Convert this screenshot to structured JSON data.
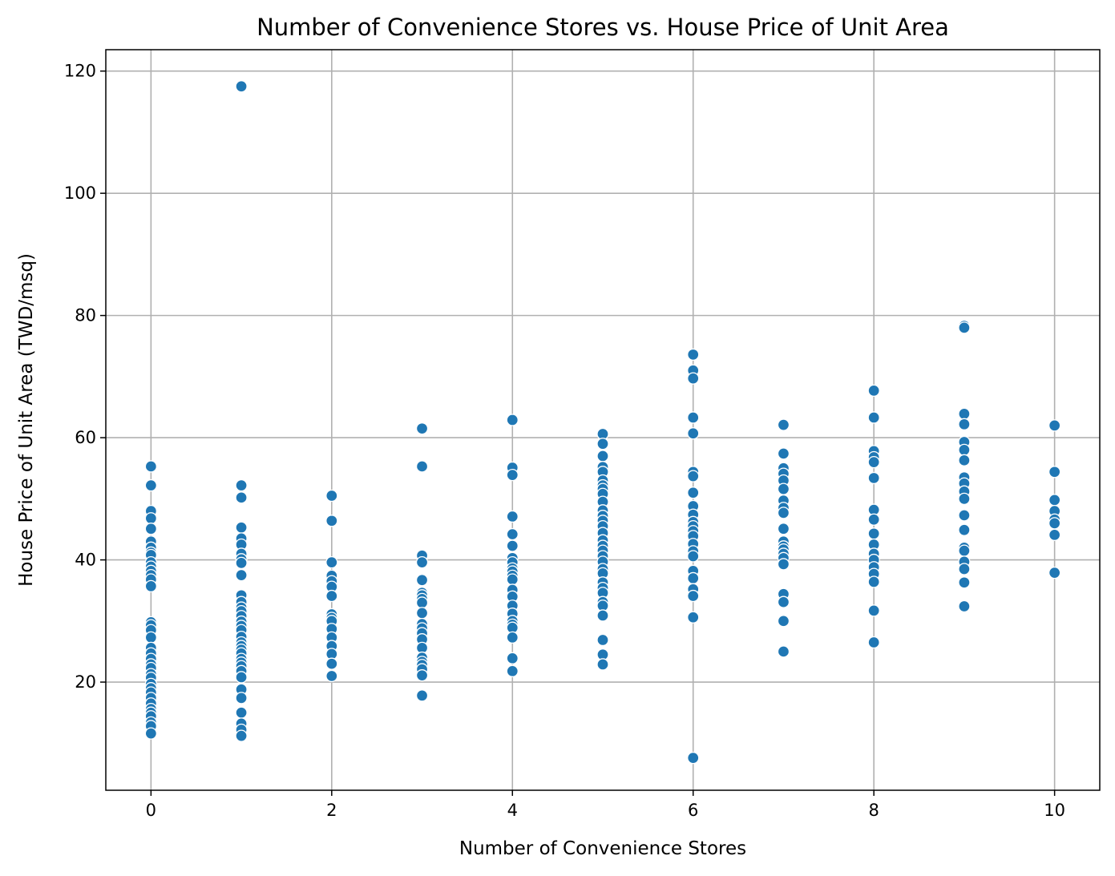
{
  "chart_data": {
    "type": "scatter",
    "title": "Number of Convenience Stores vs. House Price of Unit Area",
    "xlabel": "Number of Convenience Stores",
    "ylabel": "House Price of Unit Area (TWD/msq)",
    "xlim": [
      -0.5,
      10.5
    ],
    "ylim": [
      2.3,
      123.5
    ],
    "xticks": [
      "0",
      "2",
      "4",
      "6",
      "8",
      "10"
    ],
    "xtick_values": [
      0,
      2,
      4,
      6,
      8,
      10
    ],
    "yticks": [
      "20",
      "40",
      "60",
      "80",
      "100",
      "120"
    ],
    "ytick_values": [
      20,
      40,
      60,
      80,
      100,
      120
    ],
    "grid": true,
    "marker_color": "#1f77b4",
    "points": [
      {
        "x": 0,
        "y": [
          55.3,
          52.2,
          48.0,
          46.8,
          45.1,
          43.0,
          42.0,
          41.2,
          40.8,
          39.6,
          38.9,
          38.2,
          37.5,
          36.8,
          35.7,
          29.8,
          29.3,
          28.5,
          27.3,
          25.6,
          24.7,
          23.8,
          22.9,
          22.3,
          21.3,
          20.7,
          19.7,
          19.0,
          18.3,
          17.4,
          16.5,
          15.6,
          15.0,
          14.4,
          13.4,
          12.8,
          11.6
        ]
      },
      {
        "x": 1,
        "y": [
          117.5,
          52.2,
          50.2,
          45.3,
          43.5,
          42.5,
          41.0,
          40.1,
          39.5,
          37.5,
          34.2,
          33.1,
          32.2,
          31.6,
          30.8,
          29.9,
          29.2,
          28.5,
          27.4,
          26.5,
          25.9,
          25.3,
          24.7,
          23.8,
          23.2,
          22.6,
          21.8,
          20.8,
          18.8,
          17.4,
          15.0,
          13.2,
          12.2,
          11.2
        ]
      },
      {
        "x": 2,
        "y": [
          50.5,
          46.4,
          39.6,
          37.4,
          36.5,
          35.6,
          34.1,
          31.1,
          30.5,
          30.0,
          28.7,
          27.3,
          25.9,
          24.6,
          23.0,
          21.0
        ]
      },
      {
        "x": 3,
        "y": [
          61.5,
          55.3,
          40.7,
          39.6,
          36.7,
          34.6,
          34.2,
          33.6,
          33.0,
          31.3,
          29.5,
          28.8,
          28.0,
          27.0,
          25.6,
          24.0,
          23.3,
          22.8,
          22.1,
          21.1,
          17.8
        ]
      },
      {
        "x": 4,
        "y": [
          62.9,
          55.1,
          53.9,
          47.1,
          44.2,
          42.3,
          40.3,
          39.6,
          38.6,
          38.1,
          37.4,
          36.8,
          35.1,
          34.0,
          32.5,
          31.2,
          30.0,
          29.4,
          28.9,
          27.3,
          23.9,
          21.8
        ]
      },
      {
        "x": 5,
        "y": [
          60.6,
          59.0,
          57.0,
          55.2,
          54.4,
          53.0,
          52.2,
          51.6,
          50.8,
          49.5,
          48.1,
          47.2,
          46.4,
          45.5,
          44.4,
          43.2,
          42.3,
          41.5,
          40.6,
          39.7,
          38.5,
          37.8,
          36.3,
          35.4,
          34.6,
          33.1,
          32.5,
          30.9,
          26.9,
          24.5,
          22.9
        ]
      },
      {
        "x": 6,
        "y": [
          73.6,
          71.0,
          69.7,
          63.3,
          60.7,
          54.4,
          53.7,
          51.0,
          48.8,
          47.4,
          46.2,
          45.5,
          44.7,
          43.9,
          42.6,
          41.4,
          40.6,
          38.2,
          37.0,
          35.2,
          34.1,
          30.6,
          7.6
        ]
      },
      {
        "x": 7,
        "y": [
          62.1,
          57.4,
          55.0,
          54.1,
          53.0,
          51.6,
          49.7,
          48.5,
          47.7,
          45.1,
          43.0,
          42.2,
          41.7,
          41.0,
          40.3,
          39.3,
          34.4,
          33.1,
          30.0,
          25.0
        ]
      },
      {
        "x": 8,
        "y": [
          67.7,
          63.3,
          57.8,
          56.8,
          56.0,
          53.4,
          48.2,
          46.6,
          44.3,
          42.5,
          41.0,
          40.0,
          38.8,
          37.7,
          36.4,
          31.7,
          26.5
        ]
      },
      {
        "x": 9,
        "y": [
          78.3,
          78.0,
          63.9,
          62.2,
          59.3,
          58.0,
          56.3,
          53.5,
          52.5,
          51.2,
          50.0,
          47.3,
          44.9,
          42.0,
          41.5,
          39.7,
          38.5,
          36.3,
          32.4
        ]
      },
      {
        "x": 10,
        "y": [
          62.0,
          54.4,
          49.8,
          48.0,
          46.6,
          46.0,
          44.1,
          37.9
        ]
      }
    ]
  }
}
